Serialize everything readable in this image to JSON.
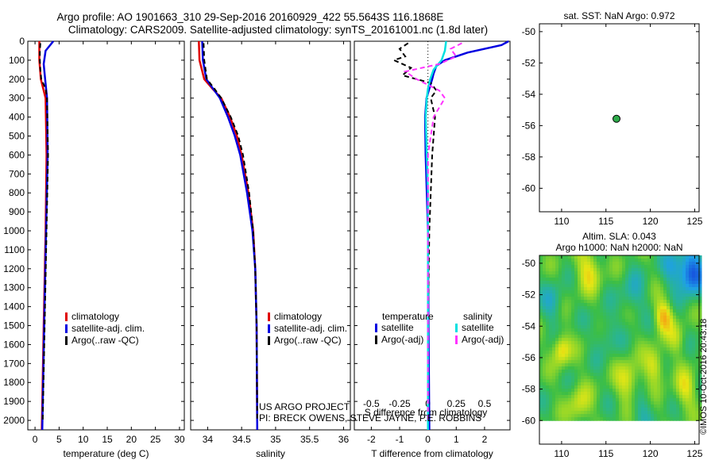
{
  "title": {
    "line1": "Argo profile: AO 1901663_310 29-Sep-2016 20160929_422 55.5643S 116.1868E",
    "line2": "Climatology: CARS2009. Satellite-adjusted climatology: synTS_20161001.nc (1.8d later)"
  },
  "credits": {
    "line1": "US ARGO PROJECT",
    "line2": "PI: BRECK OWENS, STEVE JAYNE, P.E. ROBBINS"
  },
  "imos_stamp": "©IMOS 10-Oct-2016 20:43:18",
  "colors": {
    "climatology": "#e00000",
    "satellite": "#0000e0",
    "argo": "#000000",
    "satellite_sal": "#00e0e0",
    "argo_sal": "#ff33ff"
  },
  "depth_axis": {
    "range": [
      0,
      2050
    ],
    "ticks": [
      0,
      100,
      200,
      300,
      400,
      500,
      600,
      700,
      800,
      900,
      1000,
      1100,
      1200,
      1300,
      1400,
      1500,
      1600,
      1700,
      1800,
      1900,
      2000
    ]
  },
  "chart_data": [
    {
      "type": "line",
      "id": "temperature",
      "xlabel": "temperature (deg C)",
      "ylabel": "",
      "xlim": [
        -1.5,
        31
      ],
      "xticks": [
        0,
        5,
        10,
        15,
        20,
        25,
        30
      ],
      "legend": [
        "climatology",
        "satellite-adj. clim.",
        "Argo(..raw -QC)"
      ],
      "series": [
        {
          "name": "climatology",
          "depth": [
            0,
            100,
            200,
            300,
            600,
            1000,
            1500,
            2050
          ],
          "values": [
            0.9,
            0.9,
            1.2,
            2.2,
            2.4,
            2.2,
            1.8,
            1.4
          ]
        },
        {
          "name": "satellite-adj. clim.",
          "depth": [
            0,
            50,
            120,
            200,
            300,
            600,
            1000,
            1500,
            2050
          ],
          "values": [
            3.8,
            2.2,
            1.8,
            2.1,
            2.5,
            2.6,
            2.3,
            1.9,
            1.5
          ]
        },
        {
          "name": "Argo(..raw -QC)",
          "depth": [
            10,
            50,
            100,
            150,
            200,
            250,
            300,
            600,
            1000,
            1500,
            2000
          ],
          "values": [
            1.1,
            1.0,
            1.0,
            1.1,
            1.3,
            2.2,
            2.5,
            2.7,
            2.4,
            2.0,
            1.6
          ]
        }
      ]
    },
    {
      "type": "line",
      "id": "salinity",
      "xlabel": "salinity",
      "ylabel": "",
      "xlim": [
        33.75,
        36.1
      ],
      "xticks": [
        34,
        34.5,
        35,
        35.5,
        36
      ],
      "xticklabels": [
        "34",
        "34.5",
        "35",
        "35.5",
        "36"
      ],
      "legend": [
        "climatology",
        "satellite-adj. clim.",
        "Argo(..raw -QC)"
      ],
      "series": [
        {
          "name": "climatology",
          "depth": [
            0,
            100,
            200,
            250,
            300,
            400,
            500,
            600,
            800,
            1000,
            1200,
            1500,
            2050
          ],
          "values": [
            33.87,
            33.88,
            33.95,
            34.07,
            34.2,
            34.33,
            34.43,
            34.5,
            34.6,
            34.67,
            34.7,
            34.72,
            34.73
          ]
        },
        {
          "name": "satellite-adj. clim.",
          "depth": [
            0,
            100,
            200,
            250,
            300,
            400,
            500,
            600,
            800,
            1000,
            1200,
            1500,
            2050
          ],
          "values": [
            33.92,
            33.93,
            33.98,
            34.08,
            34.18,
            34.3,
            34.4,
            34.48,
            34.58,
            34.66,
            34.7,
            34.72,
            34.73
          ]
        },
        {
          "name": "Argo(..raw -QC)",
          "depth": [
            10,
            100,
            200,
            250,
            300,
            400,
            500,
            600,
            800,
            1000,
            1200,
            1500,
            2000
          ],
          "values": [
            33.94,
            33.95,
            33.99,
            34.1,
            34.2,
            34.34,
            34.45,
            34.52,
            34.61,
            34.67,
            34.7,
            34.72,
            34.73
          ]
        }
      ]
    },
    {
      "type": "line",
      "id": "difference",
      "xlabel": "T difference from climatology",
      "xlabel_top": "S difference from climatology",
      "xlim": [
        -2.6,
        2.9
      ],
      "xticks": [
        -2,
        -1,
        0,
        1,
        2
      ],
      "top_ticks": [
        -0.5,
        -0.25,
        0,
        0.25,
        0.5
      ],
      "top_ticklabels": [
        "-0.5",
        "-0.25",
        "0",
        "0.25",
        "0.5"
      ],
      "legend_headers": [
        "temperature",
        "salinity"
      ],
      "legend": [
        "satellite",
        "Argo(-adj)",
        "satellite",
        "Argo(-adj)"
      ],
      "series": [
        {
          "name": "temperature satellite",
          "depth": [
            0,
            20,
            60,
            100,
            130,
            170,
            200,
            250,
            300,
            400,
            600,
            1000,
            1500,
            2050
          ],
          "values": [
            2.85,
            2.6,
            1.4,
            0.6,
            0.3,
            0.2,
            0.15,
            0.05,
            -0.05,
            -0.1,
            -0.08,
            0.0,
            0.02,
            0.05
          ]
        },
        {
          "name": "temperature Argo(-adj)",
          "depth": [
            10,
            40,
            80,
            100,
            140,
            180,
            220,
            260,
            300,
            400,
            600,
            1000,
            1500,
            2000
          ],
          "values": [
            -0.7,
            -1.0,
            -0.8,
            -1.2,
            -0.6,
            -0.9,
            0.1,
            0.3,
            0.1,
            0.25,
            0.15,
            0.05,
            0.0,
            0.02
          ]
        },
        {
          "name": "salinity satellite",
          "depth": [
            0,
            50,
            100,
            150,
            200,
            250,
            300,
            400,
            600,
            800,
            1000,
            1500,
            2050
          ],
          "values": [
            0.16,
            0.15,
            0.12,
            0.05,
            0.02,
            0.0,
            -0.01,
            -0.02,
            -0.01,
            0.0,
            0.0,
            0.0,
            0.0
          ]
        },
        {
          "name": "salinity Argo(-adj)",
          "depth": [
            10,
            40,
            80,
            120,
            160,
            200,
            260,
            300,
            400,
            600,
            1000,
            1500,
            2000
          ],
          "values": [
            0.3,
            0.2,
            0.25,
            0.1,
            -0.2,
            -0.1,
            0.1,
            0.15,
            0.05,
            0.0,
            0.0,
            0.0,
            0.0
          ]
        }
      ]
    },
    {
      "type": "scatter",
      "id": "sst-map",
      "title": "sat. SST: NaN Argo: 0.972",
      "xlim": [
        107.5,
        125.5
      ],
      "ylim": [
        -61.5,
        -49.5
      ],
      "xticks": [
        110,
        115,
        120,
        125
      ],
      "yticks": [
        -50,
        -52,
        -54,
        -56,
        -58,
        -60
      ],
      "points": [
        {
          "x": 116.1868,
          "y": -55.5643
        }
      ]
    },
    {
      "type": "heatmap",
      "id": "sla-map",
      "title_line1": "Altim. SLA: 0.043",
      "title_line2": "Argo h1000: NaN h2000: NaN",
      "xlim": [
        107.5,
        125.5
      ],
      "ylim": [
        -61.5,
        -49.5
      ],
      "xticks": [
        110,
        115,
        120,
        125
      ],
      "yticks": [
        -50,
        -52,
        -54,
        -56,
        -58,
        -60
      ],
      "data_ylim": [
        -60,
        -49.5
      ],
      "blobs": [
        {
          "x": 124.6,
          "y": -50.6,
          "v": -0.9,
          "r": 1.4
        },
        {
          "x": 122.5,
          "y": -50.3,
          "v": -0.4,
          "r": 1.2
        },
        {
          "x": 121.5,
          "y": -53.4,
          "v": 0.7,
          "r": 1.0
        },
        {
          "x": 113,
          "y": -50.4,
          "v": 0.5,
          "r": 1.4
        },
        {
          "x": 110,
          "y": -55.5,
          "v": 0.6,
          "r": 1.0
        },
        {
          "x": 117.5,
          "y": -57.5,
          "v": 0.5,
          "r": 1.3
        },
        {
          "x": 120.5,
          "y": -56.5,
          "v": 0.5,
          "r": 1.1
        },
        {
          "x": 112,
          "y": -59,
          "v": 0.4,
          "r": 1.3
        },
        {
          "x": 124,
          "y": -58,
          "v": 0.45,
          "r": 1.2
        },
        {
          "x": 109,
          "y": -52.5,
          "v": -0.35,
          "r": 1.2
        },
        {
          "x": 118,
          "y": -52,
          "v": -0.3,
          "r": 1.4
        },
        {
          "x": 115,
          "y": -54.5,
          "v": -0.25,
          "r": 1.3
        },
        {
          "x": 119,
          "y": -59.3,
          "v": -0.25,
          "r": 1.2
        },
        {
          "x": 123,
          "y": -54.8,
          "v": 0.3,
          "r": 1.0
        }
      ]
    }
  ]
}
